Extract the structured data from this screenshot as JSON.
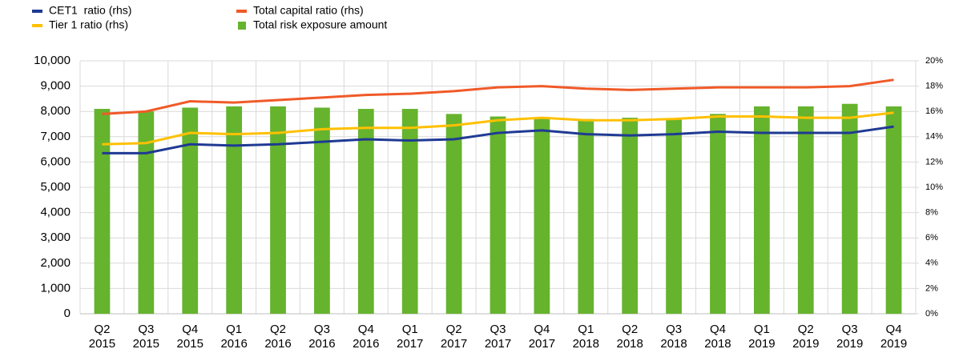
{
  "chart_data": {
    "type": "bar-line",
    "categories": [
      [
        "Q2",
        "2015"
      ],
      [
        "Q3",
        "2015"
      ],
      [
        "Q4",
        "2015"
      ],
      [
        "Q1",
        "2016"
      ],
      [
        "Q2",
        "2016"
      ],
      [
        "Q3",
        "2016"
      ],
      [
        "Q4",
        "2016"
      ],
      [
        "Q1",
        "2017"
      ],
      [
        "Q2",
        "2017"
      ],
      [
        "Q3",
        "2017"
      ],
      [
        "Q4",
        "2017"
      ],
      [
        "Q1",
        "2018"
      ],
      [
        "Q2",
        "2018"
      ],
      [
        "Q3",
        "2018"
      ],
      [
        "Q4",
        "2018"
      ],
      [
        "Q1",
        "2019"
      ],
      [
        "Q2",
        "2019"
      ],
      [
        "Q3",
        "2019"
      ],
      [
        "Q4",
        "2019"
      ]
    ],
    "series": [
      {
        "name": "CET1  ratio (rhs)",
        "type": "line",
        "axis": "y2",
        "color": "#1f3a93",
        "values": [
          12.7,
          12.7,
          13.4,
          13.3,
          13.4,
          13.6,
          13.8,
          13.7,
          13.8,
          14.3,
          14.5,
          14.2,
          14.1,
          14.2,
          14.4,
          14.3,
          14.3,
          14.3,
          14.8
        ]
      },
      {
        "name": "Tier 1 ratio (rhs)",
        "type": "line",
        "axis": "y2",
        "color": "#ffc000",
        "values": [
          13.4,
          13.5,
          14.3,
          14.2,
          14.3,
          14.6,
          14.7,
          14.7,
          14.9,
          15.3,
          15.5,
          15.3,
          15.3,
          15.4,
          15.6,
          15.6,
          15.5,
          15.5,
          15.9
        ]
      },
      {
        "name": "Total capital ratio (rhs)",
        "type": "line",
        "axis": "y2",
        "color": "#f05a28",
        "values": [
          15.8,
          16.0,
          16.8,
          16.7,
          16.9,
          17.1,
          17.3,
          17.4,
          17.6,
          17.9,
          18.0,
          17.8,
          17.7,
          17.8,
          17.9,
          17.9,
          17.9,
          18.0,
          18.5
        ]
      },
      {
        "name": "Total risk exposure amount",
        "type": "bar",
        "axis": "y",
        "color": "#66b32e",
        "values": [
          8100,
          8000,
          8150,
          8200,
          8200,
          8150,
          8100,
          8100,
          7900,
          7800,
          7750,
          7700,
          7750,
          7700,
          7900,
          8200,
          8200,
          8300,
          8200
        ]
      }
    ],
    "ylim": [
      0,
      10000
    ],
    "yticks": [
      0,
      {
        "value": 1000,
        "label": "1,000"
      },
      {
        "value": 2000,
        "label": "2,000"
      },
      {
        "value": 3000,
        "label": "3,000"
      },
      {
        "value": 4000,
        "label": "4,000"
      },
      {
        "value": 5000,
        "label": "5,000"
      },
      {
        "value": 6000,
        "label": "6,000"
      },
      {
        "value": 7000,
        "label": "7,000"
      },
      {
        "value": 8000,
        "label": "8,000"
      },
      {
        "value": 9000,
        "label": "9,000"
      },
      {
        "value": 10000,
        "label": "10,000"
      }
    ],
    "y2lim": [
      0,
      20
    ],
    "y2ticks": [
      {
        "value": 0,
        "label": "0%"
      },
      {
        "value": 2,
        "label": "2%"
      },
      {
        "value": 4,
        "label": "4%"
      },
      {
        "value": 6,
        "label": "6%"
      },
      {
        "value": 8,
        "label": "8%"
      },
      {
        "value": 10,
        "label": "10%"
      },
      {
        "value": 12,
        "label": "12%"
      },
      {
        "value": 14,
        "label": "14%"
      },
      {
        "value": 16,
        "label": "16%"
      },
      {
        "value": 18,
        "label": "18%"
      },
      {
        "value": 20,
        "label": "20%"
      }
    ],
    "grid": true,
    "legend": "top"
  }
}
